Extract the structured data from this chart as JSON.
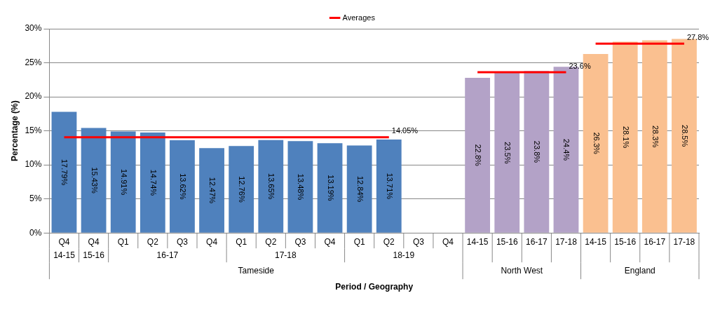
{
  "chart_data": {
    "type": "bar",
    "xlabel": "Period / Geography",
    "ylabel": "Percentage (%)",
    "categories": [
      "Q4",
      "Q4",
      "Q1",
      "Q2",
      "Q3",
      "Q4",
      "Q1",
      "Q2",
      "Q3",
      "Q4",
      "Q1",
      "Q2",
      "Q3",
      "Q4",
      "14-15",
      "15-16",
      "16-17",
      "17-18",
      "14-15",
      "15-16",
      "16-17",
      "17-18"
    ],
    "series": [
      {
        "colors": [
          "#4f81bd",
          "#4f81bd",
          "#4f81bd",
          "#4f81bd",
          "#4f81bd",
          "#4f81bd",
          "#4f81bd",
          "#4f81bd",
          "#4f81bd",
          "#4f81bd",
          "#4f81bd",
          "#4f81bd",
          "#4f81bd",
          "#4f81bd",
          "#b3a2c7",
          "#b3a2c7",
          "#b3a2c7",
          "#b3a2c7",
          "#fac090",
          "#fac090",
          "#fac090",
          "#fac090"
        ],
        "values": [
          17.79,
          15.43,
          14.91,
          14.74,
          13.62,
          12.47,
          12.76,
          13.65,
          13.48,
          13.19,
          12.84,
          13.71,
          null,
          null,
          22.8,
          23.5,
          23.8,
          24.4,
          26.3,
          28.1,
          28.3,
          28.5
        ],
        "value_labels": [
          "17.79%",
          "15.43%",
          "14.91%",
          "14.74%",
          "13.62%",
          "12.47%",
          "12.76%",
          "13.65%",
          "13.48%",
          "13.19%",
          "12.84%",
          "13.71%",
          null,
          null,
          "22.8%",
          "23.5%",
          "23.8%",
          "24.4%",
          "26.3%",
          "28.1%",
          "28.3%",
          "28.5%"
        ]
      },
      {
        "type": "line",
        "name": "Averages",
        "color": "#ff0000",
        "values": [
          14.05,
          14.05,
          14.05,
          14.05,
          14.05,
          14.05,
          14.05,
          14.05,
          14.05,
          14.05,
          14.05,
          14.05,
          null,
          null,
          null,
          null,
          null,
          null,
          null,
          null,
          null,
          null
        ],
        "value_labels": [
          null,
          null,
          null,
          null,
          null,
          null,
          null,
          null,
          null,
          null,
          null,
          "14.05%",
          null,
          null,
          null,
          null,
          null,
          null,
          null,
          null,
          null,
          null
        ]
      },
      {
        "type": "line",
        "color": "#ff0000",
        "values": [
          null,
          null,
          null,
          null,
          null,
          null,
          null,
          null,
          null,
          null,
          null,
          null,
          null,
          null,
          23.6,
          23.6,
          23.6,
          23.6,
          null,
          null,
          null,
          null
        ],
        "value_labels": [
          null,
          null,
          null,
          null,
          null,
          null,
          null,
          null,
          null,
          null,
          null,
          null,
          null,
          null,
          null,
          null,
          null,
          "23.6%",
          null,
          null,
          null,
          null
        ]
      },
      {
        "type": "line",
        "color": "#ff0000",
        "values": [
          null,
          null,
          null,
          null,
          null,
          null,
          null,
          null,
          null,
          null,
          null,
          null,
          null,
          null,
          null,
          null,
          null,
          null,
          27.8,
          27.8,
          27.8,
          27.8
        ],
        "value_labels": [
          null,
          null,
          null,
          null,
          null,
          null,
          null,
          null,
          null,
          null,
          null,
          null,
          null,
          null,
          null,
          null,
          null,
          null,
          null,
          null,
          null,
          "27.8%"
        ]
      }
    ],
    "annotations": [
      "14-15",
      "15-16",
      "16-17",
      "17-18",
      "18-19",
      "Tameside",
      "North West",
      "England"
    ],
    "ylim": [
      0,
      30
    ],
    "yticks": [
      {
        "value": 0,
        "label": "0%"
      },
      {
        "value": 5,
        "label": "5%"
      },
      {
        "value": 10,
        "label": "10%"
      },
      {
        "value": 15,
        "label": "15%"
      },
      {
        "value": 20,
        "label": "20%"
      },
      {
        "value": 25,
        "label": "25%"
      },
      {
        "value": 30,
        "label": "30%"
      }
    ],
    "grid": "y",
    "legend": "top",
    "marker": "none"
  }
}
